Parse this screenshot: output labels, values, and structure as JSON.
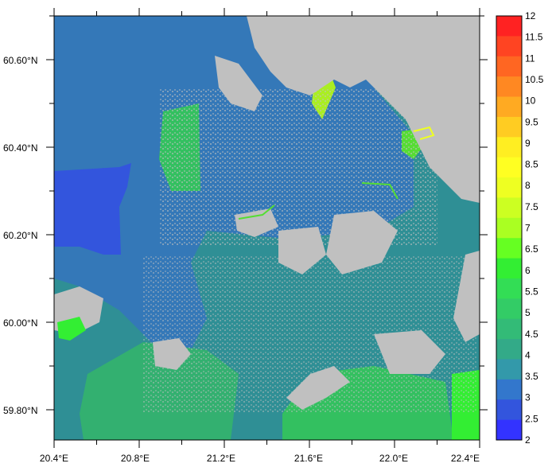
{
  "map": {
    "lat_labels": [
      "60.60°N",
      "60.40°N",
      "60.20°N",
      "60.00°N",
      "59.80°N"
    ],
    "lon_labels": [
      "20.4°E",
      "20.8°E",
      "21.2°E",
      "21.6°E",
      "22.0°E",
      "22.4°E"
    ],
    "land_color": "#c0c0c0",
    "colorbar": {
      "labels": [
        "12",
        "11.5",
        "11",
        "10.5",
        "10",
        "9.5",
        "9",
        "8.5",
        "8",
        "7.5",
        "7",
        "6.5",
        "6",
        "5.5",
        "5",
        "4.5",
        "4",
        "3.5",
        "3",
        "2.5",
        "2"
      ],
      "colors": [
        "#ff2222",
        "#ff4422",
        "#ff6622",
        "#ff8822",
        "#ffaa22",
        "#ffcc22",
        "#ffee22",
        "#ffff22",
        "#eeff22",
        "#ccff22",
        "#aaff22",
        "#66ff22",
        "#33ee33",
        "#33dd55",
        "#33cc66",
        "#33bb77",
        "#33aa88",
        "#3399aa",
        "#3377cc",
        "#3355dd",
        "#3333ff"
      ]
    }
  }
}
